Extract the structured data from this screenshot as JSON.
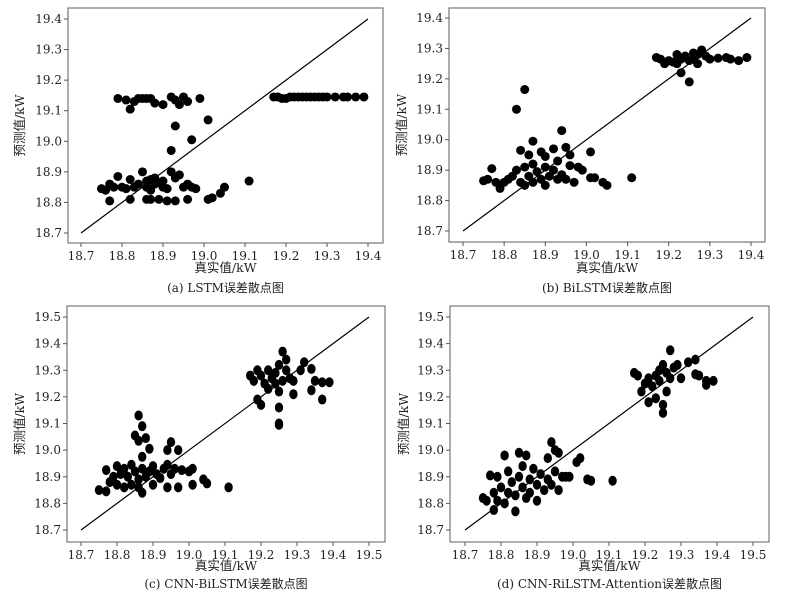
{
  "chart_data": [
    {
      "type": "scatter",
      "caption": "(a) LSTM误差散点图",
      "xlabel": "真实值/kW",
      "ylabel": "预测值/kW",
      "xlim": [
        18.7,
        19.4
      ],
      "ylim": [
        18.7,
        19.4
      ],
      "xticks": [
        "18.7",
        "18.8",
        "18.9",
        "19.0",
        "19.1",
        "19.2",
        "19.3",
        "19.4"
      ],
      "yticks": [
        "18.7",
        "18.8",
        "18.9",
        "19.0",
        "19.1",
        "19.2",
        "19.3",
        "19.4"
      ],
      "reference_line": "y = x",
      "grid": false,
      "points": [
        [
          18.79,
          19.14
        ],
        [
          18.81,
          19.135
        ],
        [
          18.82,
          19.105
        ],
        [
          18.83,
          19.13
        ],
        [
          18.84,
          19.14
        ],
        [
          18.85,
          19.14
        ],
        [
          18.86,
          19.14
        ],
        [
          18.87,
          19.14
        ],
        [
          18.88,
          19.125
        ],
        [
          18.9,
          19.12
        ],
        [
          18.92,
          19.145
        ],
        [
          18.93,
          19.135
        ],
        [
          18.94,
          19.12
        ],
        [
          18.95,
          19.145
        ],
        [
          18.96,
          19.13
        ],
        [
          18.99,
          19.14
        ],
        [
          18.93,
          19.05
        ],
        [
          18.92,
          18.97
        ],
        [
          18.97,
          19.005
        ],
        [
          19.01,
          19.07
        ],
        [
          19.11,
          18.87
        ],
        [
          19.17,
          19.145
        ],
        [
          19.18,
          19.145
        ],
        [
          19.19,
          19.14
        ],
        [
          19.2,
          19.14
        ],
        [
          19.21,
          19.145
        ],
        [
          19.22,
          19.145
        ],
        [
          19.23,
          19.145
        ],
        [
          19.24,
          19.145
        ],
        [
          19.25,
          19.145
        ],
        [
          19.26,
          19.145
        ],
        [
          19.27,
          19.145
        ],
        [
          19.28,
          19.145
        ],
        [
          19.29,
          19.145
        ],
        [
          19.3,
          19.145
        ],
        [
          19.32,
          19.145
        ],
        [
          19.34,
          19.145
        ],
        [
          19.35,
          19.145
        ],
        [
          19.37,
          19.145
        ],
        [
          19.39,
          19.145
        ],
        [
          18.75,
          18.845
        ],
        [
          18.76,
          18.84
        ],
        [
          18.77,
          18.86
        ],
        [
          18.78,
          18.85
        ],
        [
          18.79,
          18.885
        ],
        [
          18.8,
          18.85
        ],
        [
          18.81,
          18.845
        ],
        [
          18.82,
          18.875
        ],
        [
          18.83,
          18.85
        ],
        [
          18.84,
          18.86
        ],
        [
          18.85,
          18.9
        ],
        [
          18.86,
          18.87
        ],
        [
          18.86,
          18.85
        ],
        [
          18.87,
          18.875
        ],
        [
          18.87,
          18.84
        ],
        [
          18.88,
          18.86
        ],
        [
          18.88,
          18.88
        ],
        [
          18.89,
          18.865
        ],
        [
          18.9,
          18.85
        ],
        [
          18.9,
          18.87
        ],
        [
          18.91,
          18.845
        ],
        [
          18.92,
          18.9
        ],
        [
          18.93,
          18.88
        ],
        [
          18.94,
          18.89
        ],
        [
          18.95,
          18.85
        ],
        [
          18.96,
          18.86
        ],
        [
          18.97,
          18.85
        ],
        [
          18.98,
          18.845
        ],
        [
          18.77,
          18.805
        ],
        [
          18.82,
          18.81
        ],
        [
          18.86,
          18.81
        ],
        [
          18.87,
          18.81
        ],
        [
          18.89,
          18.81
        ],
        [
          18.91,
          18.805
        ],
        [
          18.93,
          18.805
        ],
        [
          18.96,
          18.81
        ],
        [
          19.01,
          18.81
        ],
        [
          19.02,
          18.815
        ],
        [
          19.04,
          18.83
        ],
        [
          19.05,
          18.85
        ]
      ]
    },
    {
      "type": "scatter",
      "caption": "(b) BiLSTM误差散点图",
      "xlabel": "真实值/kW",
      "ylabel": "预测值/kW",
      "xlim": [
        18.7,
        19.4
      ],
      "ylim": [
        18.7,
        19.4
      ],
      "xticks": [
        "18.7",
        "18.8",
        "18.9",
        "19.0",
        "19.1",
        "19.2",
        "19.3",
        "19.4"
      ],
      "yticks": [
        "18.7",
        "18.8",
        "18.9",
        "19.0",
        "19.1",
        "19.2",
        "19.3",
        "19.4"
      ],
      "reference_line": "y = x",
      "grid": false,
      "points": [
        [
          19.17,
          19.27
        ],
        [
          19.18,
          19.265
        ],
        [
          19.19,
          19.25
        ],
        [
          19.2,
          19.26
        ],
        [
          19.21,
          19.255
        ],
        [
          19.22,
          19.28
        ],
        [
          19.22,
          19.25
        ],
        [
          19.23,
          19.265
        ],
        [
          19.24,
          19.275
        ],
        [
          19.25,
          19.26
        ],
        [
          19.26,
          19.285
        ],
        [
          19.26,
          19.265
        ],
        [
          19.27,
          19.25
        ],
        [
          19.27,
          19.28
        ],
        [
          19.28,
          19.295
        ],
        [
          19.29,
          19.275
        ],
        [
          19.3,
          19.265
        ],
        [
          19.32,
          19.268
        ],
        [
          19.34,
          19.27
        ],
        [
          19.35,
          19.265
        ],
        [
          19.37,
          19.26
        ],
        [
          19.39,
          19.27
        ],
        [
          19.23,
          19.22
        ],
        [
          19.25,
          19.19
        ],
        [
          18.83,
          19.1
        ],
        [
          18.85,
          19.165
        ],
        [
          18.94,
          19.03
        ],
        [
          18.87,
          18.995
        ],
        [
          18.84,
          18.965
        ],
        [
          19.01,
          18.96
        ],
        [
          18.92,
          18.97
        ],
        [
          18.95,
          18.975
        ],
        [
          18.89,
          18.96
        ],
        [
          18.9,
          18.945
        ],
        [
          18.86,
          18.95
        ],
        [
          18.96,
          18.95
        ],
        [
          18.93,
          18.93
        ],
        [
          19.11,
          18.875
        ],
        [
          19.04,
          18.86
        ],
        [
          19.05,
          18.85
        ],
        [
          18.75,
          18.865
        ],
        [
          18.76,
          18.87
        ],
        [
          18.77,
          18.905
        ],
        [
          18.78,
          18.86
        ],
        [
          18.79,
          18.84
        ],
        [
          18.8,
          18.86
        ],
        [
          18.81,
          18.87
        ],
        [
          18.82,
          18.88
        ],
        [
          18.83,
          18.9
        ],
        [
          18.84,
          18.86
        ],
        [
          18.85,
          18.91
        ],
        [
          18.85,
          18.85
        ],
        [
          18.86,
          18.88
        ],
        [
          18.87,
          18.92
        ],
        [
          18.87,
          18.86
        ],
        [
          18.88,
          18.895
        ],
        [
          18.89,
          18.87
        ],
        [
          18.9,
          18.91
        ],
        [
          18.9,
          18.85
        ],
        [
          18.91,
          18.88
        ],
        [
          18.92,
          18.9
        ],
        [
          18.93,
          18.87
        ],
        [
          18.94,
          18.885
        ],
        [
          18.95,
          18.87
        ],
        [
          18.96,
          18.915
        ],
        [
          18.97,
          18.86
        ],
        [
          18.98,
          18.91
        ],
        [
          18.99,
          18.9
        ],
        [
          19.01,
          18.875
        ],
        [
          19.02,
          18.875
        ]
      ]
    },
    {
      "type": "scatter",
      "caption": "(c) CNN-BiLSTM误差散点图",
      "xlabel": "真实值/kW",
      "ylabel": "预测值/kW",
      "xlim": [
        18.7,
        19.5
      ],
      "ylim": [
        18.7,
        19.5
      ],
      "xticks": [
        "18.7",
        "18.8",
        "18.9",
        "19.0",
        "19.1",
        "19.2",
        "19.3",
        "19.4",
        "19.5"
      ],
      "yticks": [
        "18.7",
        "18.8",
        "18.9",
        "19.0",
        "19.1",
        "19.2",
        "19.3",
        "19.4",
        "19.5"
      ],
      "reference_line": "y = x",
      "grid": false,
      "points": [
        [
          18.75,
          18.85
        ],
        [
          18.77,
          18.845
        ],
        [
          18.77,
          18.925
        ],
        [
          18.78,
          18.88
        ],
        [
          18.79,
          18.9
        ],
        [
          18.8,
          18.94
        ],
        [
          18.8,
          18.87
        ],
        [
          18.81,
          18.91
        ],
        [
          18.82,
          18.93
        ],
        [
          18.82,
          18.86
        ],
        [
          18.83,
          18.9
        ],
        [
          18.84,
          18.945
        ],
        [
          18.84,
          18.87
        ],
        [
          18.85,
          18.92
        ],
        [
          18.86,
          18.89
        ],
        [
          18.86,
          18.86
        ],
        [
          18.87,
          18.93
        ],
        [
          18.87,
          18.84
        ],
        [
          18.88,
          18.9
        ],
        [
          18.89,
          18.92
        ],
        [
          18.9,
          18.87
        ],
        [
          18.9,
          18.94
        ],
        [
          18.91,
          18.91
        ],
        [
          18.92,
          18.895
        ],
        [
          18.93,
          18.93
        ],
        [
          18.94,
          18.86
        ],
        [
          18.94,
          18.945
        ],
        [
          18.95,
          18.91
        ],
        [
          18.96,
          18.93
        ],
        [
          18.97,
          18.86
        ],
        [
          18.98,
          18.925
        ],
        [
          19.0,
          18.92
        ],
        [
          19.01,
          18.93
        ],
        [
          18.86,
          19.13
        ],
        [
          18.87,
          19.09
        ],
        [
          18.85,
          19.055
        ],
        [
          18.88,
          19.045
        ],
        [
          18.86,
          19.035
        ],
        [
          18.89,
          19.005
        ],
        [
          18.87,
          18.975
        ],
        [
          18.94,
          19.0
        ],
        [
          18.95,
          19.03
        ],
        [
          18.97,
          19.0
        ],
        [
          19.11,
          18.86
        ],
        [
          19.05,
          18.875
        ],
        [
          19.01,
          18.87
        ],
        [
          19.04,
          18.89
        ],
        [
          19.17,
          19.28
        ],
        [
          19.18,
          19.26
        ],
        [
          19.19,
          19.3
        ],
        [
          19.19,
          19.19
        ],
        [
          19.2,
          19.17
        ],
        [
          19.2,
          19.28
        ],
        [
          19.21,
          19.25
        ],
        [
          19.22,
          19.3
        ],
        [
          19.22,
          19.23
        ],
        [
          19.23,
          19.27
        ],
        [
          19.24,
          19.29
        ],
        [
          19.24,
          19.25
        ],
        [
          19.25,
          19.32
        ],
        [
          19.25,
          19.22
        ],
        [
          19.25,
          19.16
        ],
        [
          19.25,
          19.1
        ],
        [
          19.25,
          19.095
        ],
        [
          19.26,
          19.37
        ],
        [
          19.26,
          19.26
        ],
        [
          19.27,
          19.34
        ],
        [
          19.27,
          19.3
        ],
        [
          19.28,
          19.27
        ],
        [
          19.29,
          19.21
        ],
        [
          19.29,
          19.26
        ],
        [
          19.31,
          19.3
        ],
        [
          19.32,
          19.33
        ],
        [
          19.34,
          19.305
        ],
        [
          19.34,
          19.225
        ],
        [
          19.35,
          19.26
        ],
        [
          19.37,
          19.19
        ],
        [
          19.37,
          19.255
        ],
        [
          19.39,
          19.255
        ]
      ]
    },
    {
      "type": "scatter",
      "caption": "(d) CNN-RiLSTM-Attention误差散点图",
      "xlabel": "真实值/kW",
      "ylabel": "预测值/kW",
      "xlim": [
        18.7,
        19.5
      ],
      "ylim": [
        18.7,
        19.5
      ],
      "xticks": [
        "18.7",
        "18.8",
        "18.9",
        "19.0",
        "19.1",
        "19.2",
        "19.3",
        "19.4",
        "19.5"
      ],
      "yticks": [
        "18.7",
        "18.8",
        "18.9",
        "19.0",
        "19.1",
        "19.2",
        "19.3",
        "19.4",
        "19.5"
      ],
      "reference_line": "y = x",
      "grid": false,
      "points": [
        [
          18.75,
          18.82
        ],
        [
          18.76,
          18.81
        ],
        [
          18.77,
          18.905
        ],
        [
          18.78,
          18.775
        ],
        [
          18.78,
          18.84
        ],
        [
          18.79,
          18.9
        ],
        [
          18.79,
          18.81
        ],
        [
          18.8,
          18.86
        ],
        [
          18.81,
          18.98
        ],
        [
          18.81,
          18.8
        ],
        [
          18.82,
          18.92
        ],
        [
          18.82,
          18.84
        ],
        [
          18.83,
          18.88
        ],
        [
          18.84,
          18.77
        ],
        [
          18.84,
          18.83
        ],
        [
          18.85,
          18.99
        ],
        [
          18.85,
          18.9
        ],
        [
          18.86,
          18.86
        ],
        [
          18.86,
          18.94
        ],
        [
          18.87,
          18.82
        ],
        [
          18.87,
          18.98
        ],
        [
          18.88,
          18.89
        ],
        [
          18.88,
          18.84
        ],
        [
          18.89,
          18.93
        ],
        [
          18.9,
          18.87
        ],
        [
          18.9,
          18.81
        ],
        [
          18.91,
          18.91
        ],
        [
          18.92,
          18.85
        ],
        [
          18.93,
          18.97
        ],
        [
          18.93,
          18.89
        ],
        [
          18.94,
          19.03
        ],
        [
          18.94,
          18.87
        ],
        [
          18.95,
          19.0
        ],
        [
          18.95,
          18.92
        ],
        [
          18.96,
          18.99
        ],
        [
          18.96,
          18.85
        ],
        [
          18.97,
          18.9
        ],
        [
          18.98,
          18.9
        ],
        [
          18.99,
          18.9
        ],
        [
          19.01,
          18.955
        ],
        [
          19.02,
          18.97
        ],
        [
          19.04,
          18.89
        ],
        [
          19.05,
          18.885
        ],
        [
          19.11,
          18.885
        ],
        [
          19.17,
          19.29
        ],
        [
          19.18,
          19.28
        ],
        [
          19.19,
          19.22
        ],
        [
          19.2,
          19.25
        ],
        [
          19.21,
          19.27
        ],
        [
          19.21,
          19.18
        ],
        [
          19.22,
          19.24
        ],
        [
          19.23,
          19.195
        ],
        [
          19.23,
          19.28
        ],
        [
          19.24,
          19.3
        ],
        [
          19.24,
          19.26
        ],
        [
          19.25,
          19.17
        ],
        [
          19.25,
          19.14
        ],
        [
          19.25,
          19.32
        ],
        [
          19.26,
          19.22
        ],
        [
          19.26,
          19.29
        ],
        [
          19.27,
          19.375
        ],
        [
          19.27,
          19.27
        ],
        [
          19.28,
          19.31
        ],
        [
          19.29,
          19.32
        ],
        [
          19.3,
          19.27
        ],
        [
          19.32,
          19.33
        ],
        [
          19.34,
          19.34
        ],
        [
          19.34,
          19.285
        ],
        [
          19.35,
          19.28
        ],
        [
          19.37,
          19.245
        ],
        [
          19.37,
          19.26
        ],
        [
          19.39,
          19.26
        ]
      ]
    }
  ]
}
